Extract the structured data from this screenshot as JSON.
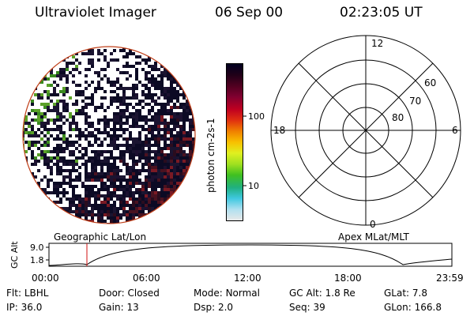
{
  "header": {
    "title": "Ultraviolet Imager",
    "date": "06 Sep 00",
    "time": "02:23:05 UT"
  },
  "colorbar": {
    "label": "photon cm-2s-1",
    "ticks": [
      "100",
      "10"
    ],
    "colors": [
      "#e8e8e8",
      "#b0e0f0",
      "#40c8e0",
      "#20b080",
      "#40c020",
      "#a0e020",
      "#e0f020",
      "#f8c000",
      "#f08000",
      "#e03010",
      "#c00020",
      "#800030",
      "#500020",
      "#200018",
      "#000020"
    ]
  },
  "polar": {
    "mlt_labels": {
      "top": "12",
      "left": "18",
      "right": "6",
      "bottom": "0"
    },
    "lat_labels": [
      "60",
      "70",
      "80"
    ]
  },
  "altitude_plot": {
    "ylabel": "GC Alt",
    "yticks": [
      "9.0",
      "1.8"
    ],
    "left_caption": "Geographic Lat/Lon",
    "right_caption": "Apex MLat/MLT",
    "xticks": [
      "00:00",
      "06:00",
      "12:00",
      "18:00",
      "23:59"
    ],
    "marker_time": "02:23"
  },
  "info": {
    "row1": [
      {
        "label": "Flt:",
        "value": "LBHL"
      },
      {
        "label": "Door:",
        "value": "Closed"
      },
      {
        "label": "Mode:",
        "value": "Normal"
      },
      {
        "label": "GC Alt:",
        "value": "1.8 Re"
      },
      {
        "label": "GLat:",
        "value": "7.8"
      }
    ],
    "row2": [
      {
        "label": "IP:",
        "value": "36.0"
      },
      {
        "label": "Gain:",
        "value": "13"
      },
      {
        "label": "Dsp:",
        "value": "2.0"
      },
      {
        "label": "Seq:",
        "value": "39"
      },
      {
        "label": "GLon:",
        "value": "166.8"
      }
    ]
  }
}
